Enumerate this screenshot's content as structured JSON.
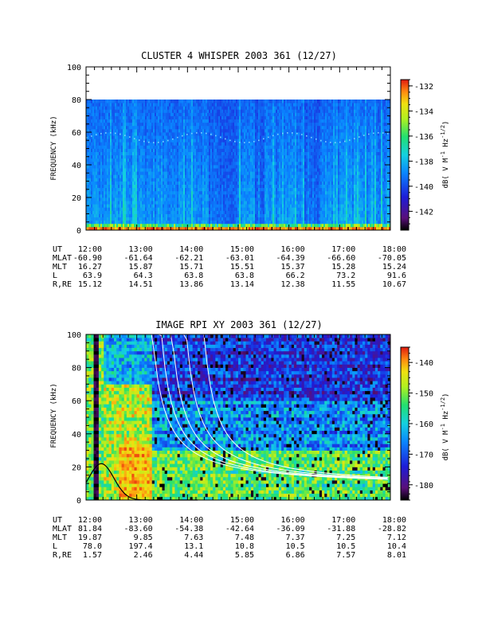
{
  "chart_data": [
    {
      "type": "heatmap",
      "title": "CLUSTER 4 WHISPER 2003 361 (12/27)",
      "ylabel": "FREQUENCY (kHz)",
      "ylim": [
        0,
        100
      ],
      "yticks": [
        "0",
        "20",
        "40",
        "60",
        "80",
        "100"
      ],
      "data_max_frequency_khz": 80,
      "xticks": [
        "12:00",
        "13:00",
        "14:00",
        "15:00",
        "16:00",
        "17:00",
        "18:00"
      ],
      "x_range_hours": [
        12,
        18
      ],
      "colorbar": {
        "label_main": "dB( V M",
        "label_sup1": "-1",
        "label_mid": " Hz",
        "label_sup2": "-1/2",
        "label_end": ")",
        "range": [
          -143.5,
          -131.5
        ],
        "ticks": [
          "-132",
          "-134",
          "-136",
          "-138",
          "-140",
          "-142"
        ]
      },
      "ephemeris": {
        "rows": [
          {
            "label": "UT",
            "values": [
              "12:00",
              "13:00",
              "14:00",
              "15:00",
              "16:00",
              "17:00",
              "18:00"
            ]
          },
          {
            "label": "MLAT",
            "values": [
              "-60.90",
              "-61.64",
              "-62.21",
              "-63.01",
              "-64.39",
              "-66.60",
              "-70.05"
            ]
          },
          {
            "label": "MLT",
            "values": [
              "16.27",
              "15.87",
              "15.71",
              "15.51",
              "15.37",
              "15.28",
              "15.24"
            ]
          },
          {
            "label": "L",
            "values": [
              "63.9",
              "64.3",
              "63.8",
              "63.8",
              "66.2",
              "73.2",
              "91.6"
            ]
          },
          {
            "label": "R,RE",
            "values": [
              "15.12",
              "14.51",
              "13.86",
              "13.14",
              "12.38",
              "11.55",
              "10.67"
            ]
          }
        ]
      }
    },
    {
      "type": "heatmap",
      "title": "IMAGE RPI XY 2003 361 (12/27)",
      "ylabel": "FREQUENCY (kHz)",
      "ylim": [
        0,
        100
      ],
      "yticks": [
        "0",
        "20",
        "40",
        "60",
        "80",
        "100"
      ],
      "xticks": [
        "12:00",
        "13:00",
        "14:00",
        "15:00",
        "16:00",
        "17:00",
        "18:00"
      ],
      "x_range_hours": [
        12,
        18
      ],
      "colorbar": {
        "label_main": "dB( V M",
        "label_sup1": "-1",
        "label_mid": " Hz",
        "label_sup2": "-1/2",
        "label_end": ")",
        "range": [
          -185,
          -135
        ],
        "ticks": [
          "-140",
          "-150",
          "-160",
          "-170",
          "-180"
        ]
      },
      "ephemeris": {
        "rows": [
          {
            "label": "UT",
            "values": [
              "12:00",
              "13:00",
              "14:00",
              "15:00",
              "16:00",
              "17:00",
              "18:00"
            ]
          },
          {
            "label": "MLAT",
            "values": [
              "81.84",
              "-83.60",
              "-54.38",
              "-42.64",
              "-36.09",
              "-31.88",
              "-28.82"
            ]
          },
          {
            "label": "MLT",
            "values": [
              "19.87",
              "9.85",
              "7.63",
              "7.48",
              "7.37",
              "7.25",
              "7.12"
            ]
          },
          {
            "label": "L",
            "values": [
              "78.0",
              "197.4",
              "13.1",
              "10.8",
              "10.5",
              "10.5",
              "10.4"
            ]
          },
          {
            "label": "R,RE",
            "values": [
              "1.57",
              "2.46",
              "4.44",
              "5.85",
              "6.86",
              "7.57",
              "8.01"
            ]
          }
        ]
      }
    }
  ]
}
